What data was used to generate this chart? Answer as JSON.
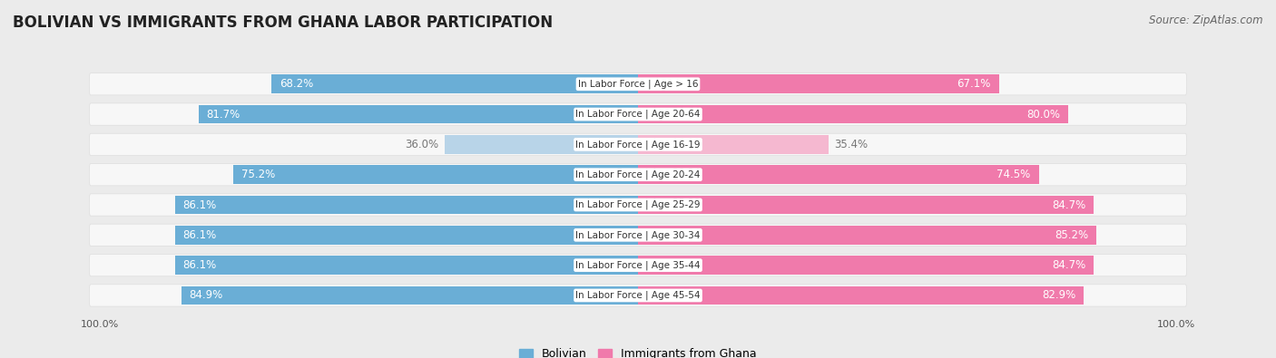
{
  "title": "BOLIVIAN VS IMMIGRANTS FROM GHANA LABOR PARTICIPATION",
  "source": "Source: ZipAtlas.com",
  "categories": [
    "In Labor Force | Age > 16",
    "In Labor Force | Age 20-64",
    "In Labor Force | Age 16-19",
    "In Labor Force | Age 20-24",
    "In Labor Force | Age 25-29",
    "In Labor Force | Age 30-34",
    "In Labor Force | Age 35-44",
    "In Labor Force | Age 45-54"
  ],
  "bolivian": [
    68.2,
    81.7,
    36.0,
    75.2,
    86.1,
    86.1,
    86.1,
    84.9
  ],
  "ghana": [
    67.1,
    80.0,
    35.4,
    74.5,
    84.7,
    85.2,
    84.7,
    82.9
  ],
  "bolivian_color_full": "#6aaed6",
  "bolivian_color_light": "#b8d4e8",
  "ghana_color_full": "#f07aab",
  "ghana_color_light": "#f5b8d0",
  "bg_color": "#ebebeb",
  "row_bg": "#f7f7f7",
  "max_val": 100.0,
  "threshold": 60.0,
  "title_fontsize": 12,
  "source_fontsize": 8.5,
  "bar_label_fontsize": 8.5,
  "category_fontsize": 7.5,
  "legend_fontsize": 9,
  "axis_fontsize": 8,
  "bar_height": 0.62
}
